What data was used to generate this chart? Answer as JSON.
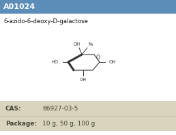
{
  "title": "A01024",
  "title_bg": "#5b8db8",
  "title_color": "#ffffff",
  "compound_name": "6-azido-6-deoxy-D-galactose",
  "cas_label": "CAS:",
  "cas_value": "66927-03-5",
  "package_label": "Package:",
  "package_value": "10 g, 50 g, 100 g",
  "table_bg": "#d9d4be",
  "bg_color": "#ffffff",
  "label_color": "#444433",
  "line_color": "#333333"
}
